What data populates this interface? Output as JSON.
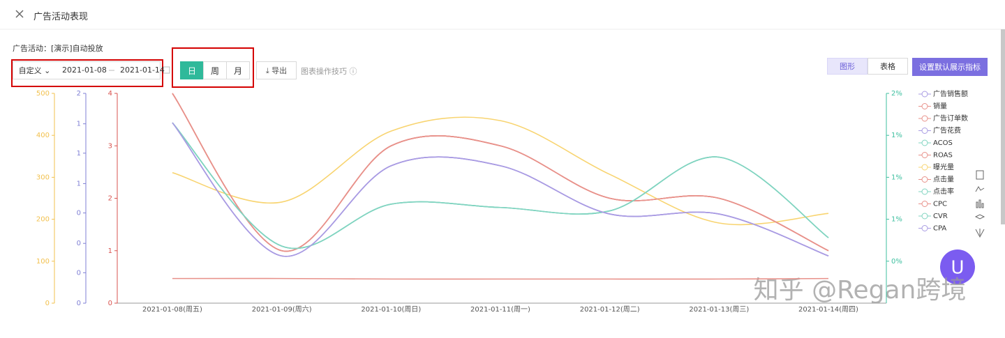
{
  "header": {
    "title": "广告活动表现"
  },
  "campaign": "广告活动：[演示]自动投放",
  "filters": {
    "range_type": "自定义",
    "start": "2021-01-08",
    "end": "2021-01-14",
    "granularity": [
      "日",
      "周",
      "月"
    ],
    "active": 0
  },
  "actions": {
    "export": "导出",
    "tips": "图表操作技巧",
    "views": [
      "图形",
      "表格"
    ],
    "active_view": 0,
    "default_metrics": "设置默认展示指标"
  },
  "watermark": "知乎 @Regan跨境",
  "chart_data": {
    "type": "line",
    "categories": [
      "2021-01-08(周五)",
      "2021-01-09(周六)",
      "2021-01-10(周日)",
      "2021-01-11(周一)",
      "2021-01-12(周二)",
      "2021-01-13(周三)",
      "2021-01-14(周四)"
    ],
    "ylim": [
      0,
      500
    ],
    "yticks": [
      0,
      100,
      200,
      300,
      400,
      500
    ],
    "y2lim": [
      0,
      2
    ],
    "y2ticks": [
      {
        "value": 0,
        "label": "0"
      },
      {
        "value": 0.29,
        "label": "0"
      },
      {
        "value": 0.57,
        "label": "0"
      },
      {
        "value": 0.86,
        "label": "0"
      },
      {
        "value": 1.14,
        "label": "1"
      },
      {
        "value": 1.43,
        "label": "1"
      },
      {
        "value": 1.71,
        "label": "1"
      },
      {
        "value": 2,
        "label": "2"
      }
    ],
    "y3lim": [
      0,
      4
    ],
    "y3ticks": [
      0,
      1,
      2,
      3,
      4
    ],
    "y4lim": [
      -0.5,
      2
    ],
    "y4ticks": [
      {
        "value": 0,
        "label": "0%"
      },
      {
        "value": 0.5,
        "label": "1%"
      },
      {
        "value": 1,
        "label": "1%"
      },
      {
        "value": 1.5,
        "label": "1%"
      },
      {
        "value": 2,
        "label": "2%"
      }
    ],
    "axis_colors": {
      "y": "#f2c14e",
      "y2": "#7f7fd5",
      "y3": "#d9534f",
      "y4": "#3dbf9f"
    },
    "series": [
      {
        "name": "广告销售额",
        "color": "#a99be3",
        "axis": "y2",
        "values": [
          1.72,
          0.45,
          1.31,
          1.31,
          0.85,
          0.85,
          0.45
        ]
      },
      {
        "name": "销量",
        "color": "#e8918a",
        "axis": "y3",
        "values": [
          4,
          1,
          3,
          3,
          2,
          2,
          1
        ]
      },
      {
        "name": "广告订单数",
        "color": "#e8918a",
        "axis": "y3",
        "values": [
          4,
          1,
          3,
          3,
          2,
          2,
          1
        ]
      },
      {
        "name": "广告花费",
        "color": "#a99be3",
        "axis": "y2",
        "values": [
          1.72,
          0.45,
          1.31,
          1.31,
          0.85,
          0.85,
          0.45
        ]
      },
      {
        "name": "ACOS",
        "color": "#80d4c0",
        "axis": "y4",
        "values": [
          1.65,
          0.18,
          0.68,
          0.64,
          0.6,
          1.24,
          0.28
        ]
      },
      {
        "name": "ROAS",
        "color": "#e8918a",
        "axis": "y3",
        "values": [
          4,
          1,
          3,
          3,
          2,
          2,
          1
        ]
      },
      {
        "name": "曝光量",
        "color": "#f8d470",
        "axis": "y",
        "values": [
          311,
          241,
          410,
          435,
          307,
          191,
          214
        ]
      },
      {
        "name": "点击量",
        "color": "#e8918a",
        "axis": "y3",
        "values": [
          4,
          1,
          3,
          3,
          2,
          2,
          1
        ]
      },
      {
        "name": "点击率",
        "color": "#80d4c0",
        "axis": "y4",
        "values": [
          1.65,
          0.18,
          0.68,
          0.64,
          0.6,
          1.24,
          0.28
        ]
      },
      {
        "name": "CPC",
        "color": "#e8918a",
        "axis": "y3",
        "values": [
          0.47,
          0.47,
          0.46,
          0.46,
          0.46,
          0.46,
          0.47
        ]
      },
      {
        "name": "CVR",
        "color": "#80d4c0",
        "axis": "y4",
        "values": [
          1.65,
          0.18,
          0.68,
          0.64,
          0.6,
          1.24,
          0.28
        ]
      },
      {
        "name": "CPA",
        "color": "#a99be3",
        "axis": "y2",
        "values": [
          1.72,
          0.45,
          1.31,
          1.31,
          0.85,
          0.85,
          0.45
        ]
      }
    ]
  }
}
